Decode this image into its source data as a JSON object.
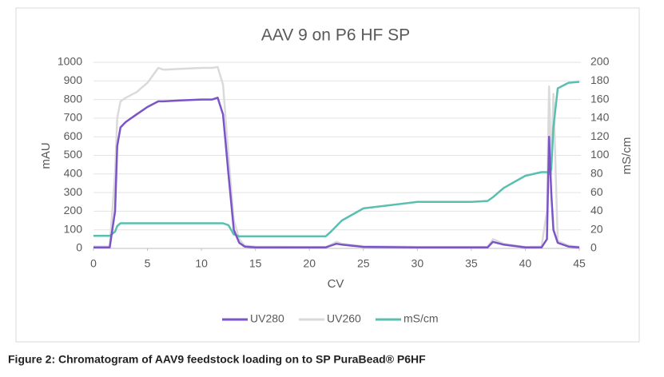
{
  "chart_data": {
    "type": "line",
    "title": "AAV 9 on P6 HF SP",
    "x_label": "CV",
    "y_label": "mAU",
    "y2_label": "mS/cm",
    "x": [
      0,
      1,
      1.5,
      2,
      2.2,
      2.5,
      3,
      4,
      5,
      6,
      6.5,
      8,
      10,
      11,
      11.5,
      12,
      12.5,
      13,
      13.5,
      14,
      15,
      20,
      21.5,
      22,
      22.5,
      23,
      25,
      30,
      35,
      36.5,
      37,
      38,
      40,
      41.5,
      42,
      42.2,
      42.4,
      42.6,
      43,
      44,
      45
    ],
    "series": [
      {
        "name": "UV280",
        "color": "#7b55c7",
        "values": [
          5,
          5,
          5,
          200,
          550,
          650,
          680,
          720,
          760,
          790,
          790,
          795,
          800,
          800,
          810,
          720,
          400,
          100,
          30,
          10,
          5,
          5,
          5,
          15,
          25,
          20,
          8,
          5,
          5,
          5,
          35,
          20,
          5,
          5,
          50,
          600,
          300,
          100,
          30,
          10,
          5
        ]
      },
      {
        "name": "UV260",
        "color": "#dadada",
        "values": [
          10,
          10,
          10,
          400,
          700,
          790,
          810,
          840,
          890,
          970,
          960,
          965,
          970,
          970,
          975,
          880,
          500,
          150,
          50,
          15,
          10,
          8,
          8,
          20,
          35,
          25,
          12,
          8,
          8,
          8,
          50,
          25,
          8,
          10,
          200,
          870,
          400,
          830,
          40,
          15,
          8
        ]
      },
      {
        "name": "mS/cm",
        "color": "#5bbfb0",
        "axis": "y2",
        "values": [
          13.5,
          13.5,
          13.5,
          18,
          24,
          27,
          27,
          27,
          27,
          27,
          27,
          27,
          27,
          27,
          27,
          27,
          25,
          15,
          13,
          13,
          13,
          13,
          13,
          18,
          24,
          30,
          43,
          50,
          50,
          51,
          55,
          65,
          78,
          82,
          82,
          80,
          85,
          130,
          172,
          178,
          179
        ]
      }
    ],
    "xlim": [
      0,
      45
    ],
    "xticks": [
      0,
      5,
      10,
      15,
      20,
      25,
      30,
      35,
      40,
      45
    ],
    "ylim": [
      0,
      1000
    ],
    "yticks": [
      0,
      100,
      200,
      300,
      400,
      500,
      600,
      700,
      800,
      900,
      1000
    ],
    "y2lim": [
      0,
      200
    ],
    "y2ticks": [
      0,
      20,
      40,
      60,
      80,
      100,
      120,
      140,
      160,
      180,
      200
    ],
    "grid": true,
    "legend": "bottom"
  },
  "caption": "Figure 2: Chromatogram of AAV9 feedstock loading on to SP PuraBead® P6HF"
}
